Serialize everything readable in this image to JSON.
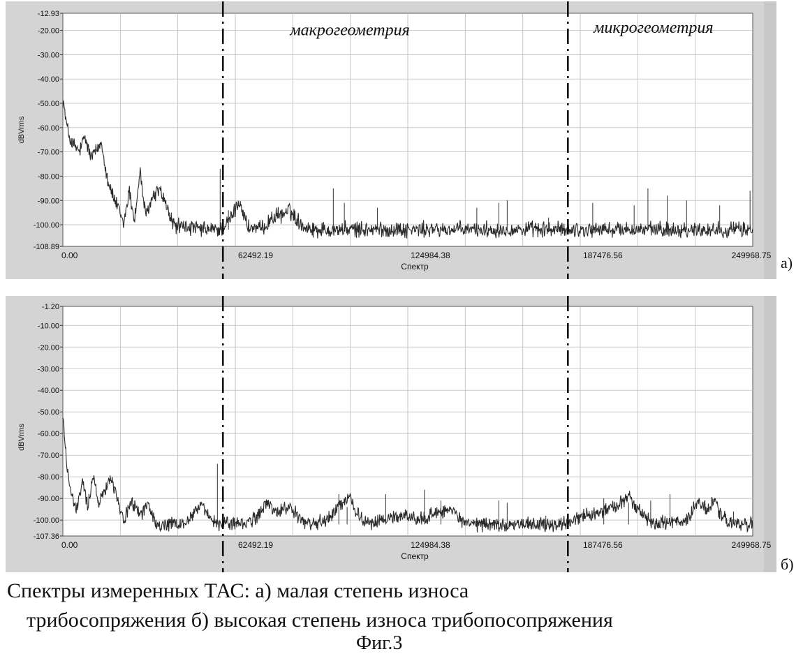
{
  "chart_data": [
    {
      "type": "line",
      "title": "",
      "panel_label": "а)",
      "xlabel": "Спектр",
      "ylabel": "dBVrms",
      "xlim": [
        0,
        249968.75
      ],
      "ylim": [
        -108.89,
        -12.93
      ],
      "x_ticks": [
        0.0,
        62492.19,
        124984.38,
        187476.56,
        249968.75
      ],
      "x_tick_labels": [
        "0.00",
        "62492.19",
        "124984.38",
        "187476.56",
        "249968.75"
      ],
      "y_ticks": [
        -12.93,
        -20.0,
        -30.0,
        -40.0,
        -50.0,
        -60.0,
        -70.0,
        -80.0,
        -90.0,
        -100.0,
        -108.89
      ],
      "y_tick_labels": [
        "-12.93",
        "-20.00",
        "-30.00",
        "-40.00",
        "-50.00",
        "-60.00",
        "-70.00",
        "-80.00",
        "-90.00",
        "-100.00",
        "-108.89"
      ],
      "grid": true,
      "region_dividers": [
        58000,
        183000
      ],
      "region_labels": [
        {
          "text": "макрогеометрия",
          "x": 104000,
          "y": -22
        },
        {
          "text": "микрогеометрия",
          "x": 214000,
          "y": -21
        }
      ],
      "series": [
        {
          "baseline": -102,
          "x": [
            0,
            1500,
            3000,
            6000,
            8000,
            10000,
            12000,
            14000,
            16000,
            18000,
            20000,
            22000,
            24000,
            26000,
            28000,
            30000,
            32000,
            35000,
            40000,
            50000,
            57000,
            60000,
            62000,
            64000,
            67000,
            72000,
            76000,
            79000,
            82000,
            85000,
            88000,
            92000,
            100000,
            249968
          ],
          "y": [
            -48,
            -60,
            -66,
            -70,
            -64,
            -72,
            -70,
            -66,
            -80,
            -88,
            -93,
            -100,
            -86,
            -98,
            -78,
            -97,
            -90,
            -85,
            -100,
            -102,
            -102,
            -99,
            -95,
            -90,
            -101,
            -102,
            -97,
            -96,
            -94,
            -98,
            -101,
            -102,
            -102,
            -102
          ],
          "spikes": [
            {
              "x": 57000,
              "y": -77
            },
            {
              "x": 60000,
              "y": -94
            },
            {
              "x": 98000,
              "y": -85
            },
            {
              "x": 102000,
              "y": -91
            },
            {
              "x": 114000,
              "y": -93
            },
            {
              "x": 150000,
              "y": -93
            },
            {
              "x": 158000,
              "y": -91
            },
            {
              "x": 161000,
              "y": -90
            },
            {
              "x": 176000,
              "y": -97
            },
            {
              "x": 192000,
              "y": -91
            },
            {
              "x": 207000,
              "y": -92
            },
            {
              "x": 212000,
              "y": -85
            },
            {
              "x": 219000,
              "y": -88
            },
            {
              "x": 226000,
              "y": -90
            },
            {
              "x": 238000,
              "y": -92
            },
            {
              "x": 249000,
              "y": -86
            }
          ]
        }
      ]
    },
    {
      "type": "line",
      "title": "",
      "panel_label": "б)",
      "xlabel": "Спектр",
      "ylabel": "dBVrms",
      "xlim": [
        0,
        249968.75
      ],
      "ylim": [
        -107.36,
        -1.2
      ],
      "x_ticks": [
        0.0,
        62492.19,
        124984.38,
        187476.56,
        249968.75
      ],
      "x_tick_labels": [
        "0.00",
        "62492.19",
        "124984.38",
        "187476.56",
        "249968.75"
      ],
      "y_ticks": [
        -1.2,
        -10.0,
        -20.0,
        -30.0,
        -40.0,
        -50.0,
        -60.0,
        -70.0,
        -80.0,
        -90.0,
        -100.0,
        -107.36
      ],
      "y_tick_labels": [
        "-1.20",
        "-10.00",
        "-20.00",
        "-30.00",
        "-40.00",
        "-50.00",
        "-60.00",
        "-70.00",
        "-80.00",
        "-90.00",
        "-100.00",
        "-107.36"
      ],
      "grid": true,
      "region_dividers": [
        58000,
        183000
      ],
      "region_labels": [],
      "series": [
        {
          "baseline": -102,
          "x": [
            0,
            1500,
            3000,
            5000,
            7000,
            9000,
            11000,
            13000,
            15000,
            17000,
            19000,
            22000,
            25000,
            28000,
            31000,
            34000,
            38000,
            44000,
            48000,
            50000,
            52000,
            56000,
            60000,
            66000,
            70000,
            74000,
            78000,
            82000,
            86000,
            90000,
            96000,
            100000,
            104000,
            108000,
            112000,
            118000,
            124000,
            130000,
            134000,
            140000,
            146000,
            150000,
            160000,
            180000,
            190000,
            196000,
            202000,
            205000,
            208000,
            214000,
            220000,
            226000,
            230000,
            233000,
            236000,
            240000,
            244000,
            249968
          ],
          "y": [
            -52,
            -75,
            -88,
            -96,
            -82,
            -93,
            -80,
            -92,
            -86,
            -80,
            -86,
            -100,
            -92,
            -97,
            -93,
            -103,
            -102,
            -102,
            -96,
            -92,
            -98,
            -102,
            -101,
            -102,
            -99,
            -92,
            -97,
            -93,
            -100,
            -102,
            -100,
            -93,
            -89,
            -100,
            -102,
            -99,
            -98,
            -100,
            -97,
            -95,
            -102,
            -102,
            -102,
            -102,
            -98,
            -96,
            -92,
            -89,
            -95,
            -102,
            -101,
            -100,
            -92,
            -95,
            -92,
            -100,
            -102,
            -102
          ],
          "spikes": [
            {
              "x": 56000,
              "y": -74
            },
            {
              "x": 59000,
              "y": -100
            },
            {
              "x": 100000,
              "y": -88
            },
            {
              "x": 103000,
              "y": -94
            },
            {
              "x": 117000,
              "y": -88
            },
            {
              "x": 131000,
              "y": -86
            },
            {
              "x": 137000,
              "y": -91
            },
            {
              "x": 158000,
              "y": -91
            },
            {
              "x": 161000,
              "y": -92
            },
            {
              "x": 175000,
              "y": -98
            },
            {
              "x": 196000,
              "y": -90
            },
            {
              "x": 205000,
              "y": -92
            },
            {
              "x": 213000,
              "y": -91
            },
            {
              "x": 220000,
              "y": -88
            },
            {
              "x": 226000,
              "y": -97
            },
            {
              "x": 243000,
              "y": -96
            }
          ]
        }
      ]
    }
  ],
  "caption": {
    "line1": "Спектры измеренных ТАС: а) малая степень износа",
    "line2": "трибосопряжения б) высокая степень износа трибопосопряжения",
    "figure": "Фиг.3"
  },
  "colors": {
    "frame": "#d4d4d4",
    "plot_bg": "#ffffff",
    "grid": "#bdbdbd",
    "trace": "#2a2a2a",
    "divider": "#111111"
  }
}
